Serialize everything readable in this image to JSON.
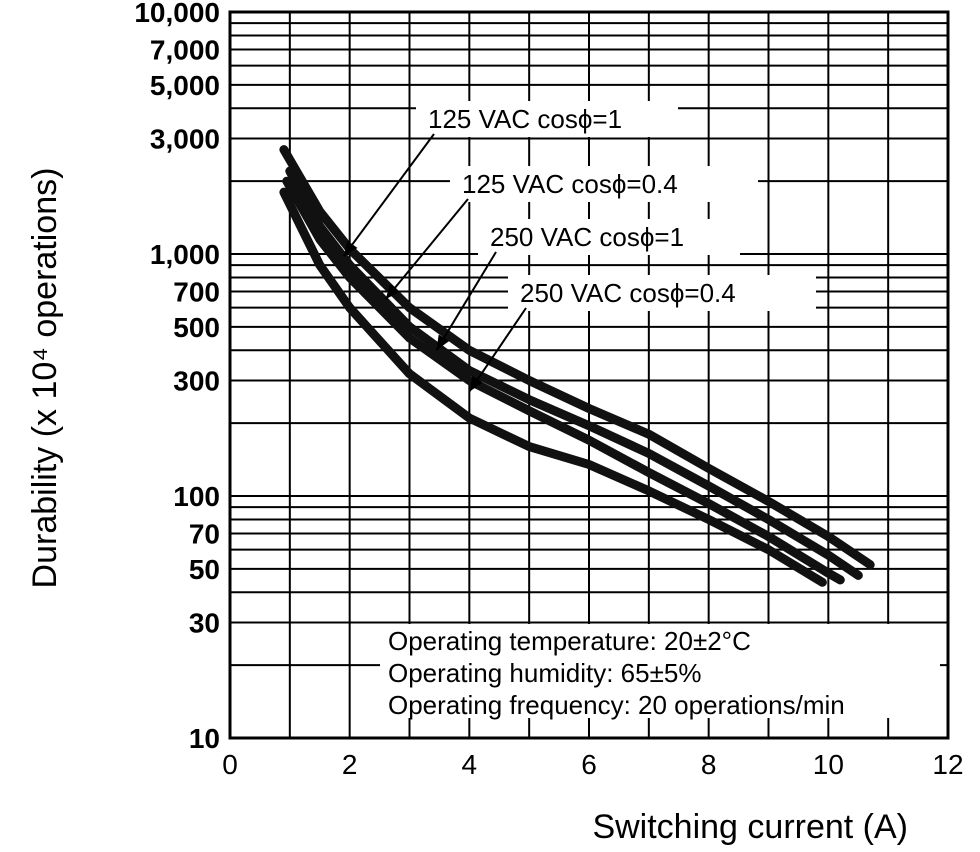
{
  "chart_data": {
    "type": "line",
    "title": "",
    "xlabel": "Switching current (A)",
    "ylabel": "Durability  (x 10⁴ operations)",
    "xlim": [
      0,
      12
    ],
    "ylim": [
      10,
      10000
    ],
    "y_scale": "log",
    "grid": true,
    "x_ticks": [
      0,
      2,
      4,
      6,
      8,
      10,
      12
    ],
    "x_tick_labels": [
      "0",
      "2",
      "4",
      "6",
      "8",
      "10",
      "12"
    ],
    "y_ticks": [
      10,
      30,
      50,
      70,
      100,
      300,
      500,
      700,
      1000,
      3000,
      5000,
      7000,
      10000
    ],
    "y_tick_labels": [
      "10",
      "30",
      "50",
      "70",
      "100",
      "300",
      "500",
      "700",
      "1,000",
      "3,000",
      "5,000",
      "7,000",
      "10,000"
    ],
    "series": [
      {
        "name": "125 VAC cosϕ=1",
        "x": [
          0.9,
          1.5,
          2,
          3,
          4,
          5,
          6,
          7,
          8,
          9,
          10,
          10.7
        ],
        "y": [
          2700,
          1500,
          1050,
          600,
          400,
          300,
          230,
          180,
          130,
          95,
          68,
          52
        ]
      },
      {
        "name": "125 VAC cosϕ=0.4",
        "x": [
          1,
          1.5,
          2,
          3,
          4,
          5,
          6,
          7,
          8,
          9,
          10,
          10.5
        ],
        "y": [
          2200,
          1300,
          900,
          500,
          330,
          250,
          195,
          150,
          110,
          80,
          57,
          47
        ]
      },
      {
        "name": "250 VAC cosϕ=1",
        "x": [
          0.95,
          1.5,
          2,
          3,
          4,
          5,
          6,
          7,
          8,
          9,
          10,
          10.2
        ],
        "y": [
          2000,
          1150,
          800,
          450,
          300,
          225,
          170,
          125,
          93,
          68,
          48,
          45
        ]
      },
      {
        "name": "250 VAC cosϕ=0.4",
        "x": [
          0.9,
          1.5,
          2,
          3,
          4,
          5,
          6,
          7,
          8,
          9,
          9.9
        ],
        "y": [
          1800,
          900,
          600,
          320,
          210,
          160,
          135,
          105,
          80,
          60,
          44
        ]
      }
    ],
    "annotations": [
      "Operating temperature: 20±2°C",
      "Operating humidity: 65±5%",
      "Operating frequency: 20 operations/min"
    ],
    "legend": "callout labels with arrows, top-right",
    "colors": {
      "line": "#111111",
      "grid": "#000000",
      "background": "#ffffff"
    }
  }
}
